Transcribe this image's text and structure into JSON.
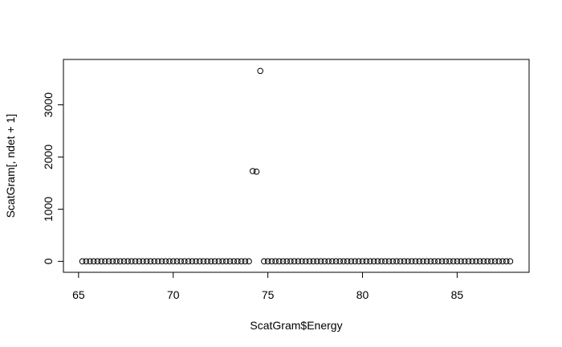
{
  "chart_data": {
    "type": "scatter",
    "title": "",
    "xlabel": "ScatGram$Energy",
    "ylabel": "ScatGram[, ndet + 1]",
    "xlim": [
      64.2,
      88.8
    ],
    "ylim": [
      -210,
      3870
    ],
    "xticks": [
      65,
      70,
      75,
      80,
      85
    ],
    "yticks": [
      0,
      1000,
      2000,
      3000
    ],
    "grid": false,
    "legend": "none",
    "marker": "open-circle",
    "series": [
      {
        "points": [
          [
            65.2,
            0
          ],
          [
            65.4,
            0
          ],
          [
            65.6,
            0
          ],
          [
            65.8,
            0
          ],
          [
            66.0,
            0
          ],
          [
            66.2,
            0
          ],
          [
            66.4,
            0
          ],
          [
            66.6,
            0
          ],
          [
            66.8,
            0
          ],
          [
            67.0,
            0
          ],
          [
            67.2,
            0
          ],
          [
            67.4,
            0
          ],
          [
            67.6,
            0
          ],
          [
            67.8,
            0
          ],
          [
            68.0,
            0
          ],
          [
            68.2,
            0
          ],
          [
            68.4,
            0
          ],
          [
            68.6,
            0
          ],
          [
            68.8,
            0
          ],
          [
            69.0,
            0
          ],
          [
            69.2,
            0
          ],
          [
            69.4,
            0
          ],
          [
            69.6,
            0
          ],
          [
            69.8,
            0
          ],
          [
            70.0,
            0
          ],
          [
            70.2,
            0
          ],
          [
            70.4,
            0
          ],
          [
            70.6,
            0
          ],
          [
            70.8,
            0
          ],
          [
            71.0,
            0
          ],
          [
            71.2,
            0
          ],
          [
            71.4,
            0
          ],
          [
            71.6,
            0
          ],
          [
            71.8,
            0
          ],
          [
            72.0,
            0
          ],
          [
            72.2,
            0
          ],
          [
            72.4,
            0
          ],
          [
            72.6,
            0
          ],
          [
            72.8,
            0
          ],
          [
            73.0,
            0
          ],
          [
            73.2,
            0
          ],
          [
            73.4,
            0
          ],
          [
            73.6,
            0
          ],
          [
            73.8,
            0
          ],
          [
            74.0,
            0
          ],
          [
            74.2,
            1730
          ],
          [
            74.4,
            1720
          ],
          [
            74.6,
            3650
          ],
          [
            74.8,
            0
          ],
          [
            75.0,
            0
          ],
          [
            75.2,
            0
          ],
          [
            75.4,
            0
          ],
          [
            75.6,
            0
          ],
          [
            75.8,
            0
          ],
          [
            76.0,
            0
          ],
          [
            76.2,
            0
          ],
          [
            76.4,
            0
          ],
          [
            76.6,
            0
          ],
          [
            76.8,
            0
          ],
          [
            77.0,
            0
          ],
          [
            77.2,
            0
          ],
          [
            77.4,
            0
          ],
          [
            77.6,
            0
          ],
          [
            77.8,
            0
          ],
          [
            78.0,
            0
          ],
          [
            78.2,
            0
          ],
          [
            78.4,
            0
          ],
          [
            78.6,
            0
          ],
          [
            78.8,
            0
          ],
          [
            79.0,
            0
          ],
          [
            79.2,
            0
          ],
          [
            79.4,
            0
          ],
          [
            79.6,
            0
          ],
          [
            79.8,
            0
          ],
          [
            80.0,
            0
          ],
          [
            80.2,
            0
          ],
          [
            80.4,
            0
          ],
          [
            80.6,
            0
          ],
          [
            80.8,
            0
          ],
          [
            81.0,
            0
          ],
          [
            81.2,
            0
          ],
          [
            81.4,
            0
          ],
          [
            81.6,
            0
          ],
          [
            81.8,
            0
          ],
          [
            82.0,
            0
          ],
          [
            82.2,
            0
          ],
          [
            82.4,
            0
          ],
          [
            82.6,
            0
          ],
          [
            82.8,
            0
          ],
          [
            83.0,
            0
          ],
          [
            83.2,
            0
          ],
          [
            83.4,
            0
          ],
          [
            83.6,
            0
          ],
          [
            83.8,
            0
          ],
          [
            84.0,
            0
          ],
          [
            84.2,
            0
          ],
          [
            84.4,
            0
          ],
          [
            84.6,
            0
          ],
          [
            84.8,
            0
          ],
          [
            85.0,
            0
          ],
          [
            85.2,
            0
          ],
          [
            85.4,
            0
          ],
          [
            85.6,
            0
          ],
          [
            85.8,
            0
          ],
          [
            86.0,
            0
          ],
          [
            86.2,
            0
          ],
          [
            86.4,
            0
          ],
          [
            86.6,
            0
          ],
          [
            86.8,
            0
          ],
          [
            87.0,
            0
          ],
          [
            87.2,
            0
          ],
          [
            87.4,
            0
          ],
          [
            87.6,
            0
          ],
          [
            87.8,
            0
          ]
        ]
      }
    ]
  }
}
